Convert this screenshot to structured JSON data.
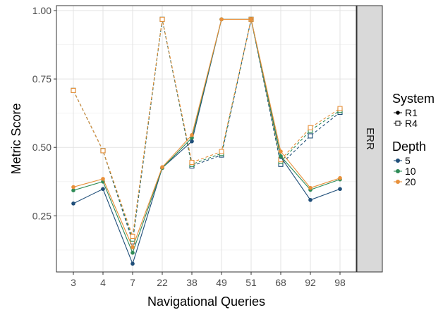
{
  "chart_data": {
    "type": "line",
    "xlabel": "Navigational Queries",
    "ylabel": "Metric Score",
    "facet_label": "ERR",
    "categories": [
      "3",
      "4",
      "7",
      "22",
      "38",
      "49",
      "51",
      "68",
      "92",
      "98"
    ],
    "y_ticks": [
      "0.25",
      "0.50",
      "0.75",
      "1.00"
    ],
    "ylim": [
      0.05,
      1.0
    ],
    "grid": true,
    "legend_position": "right",
    "legend": {
      "system_title": "System",
      "system_entries": [
        {
          "label": "R1",
          "line": "solid",
          "marker": "filled-circle"
        },
        {
          "label": "R4",
          "line": "dashed",
          "marker": "open-square"
        }
      ],
      "depth_title": "Depth",
      "depth_entries": [
        {
          "label": "5",
          "color": "#1f4e79"
        },
        {
          "label": "10",
          "color": "#2e8b57"
        },
        {
          "label": "20",
          "color": "#e8903a"
        }
      ]
    },
    "series": [
      {
        "system": "R1",
        "depth": "5",
        "color": "#1f4e79",
        "values": [
          0.295,
          0.348,
          0.075,
          0.425,
          0.522,
          0.968,
          0.968,
          0.465,
          0.308,
          0.348
        ]
      },
      {
        "system": "R1",
        "depth": "10",
        "color": "#2e8b57",
        "values": [
          0.343,
          0.375,
          0.115,
          0.425,
          0.535,
          0.968,
          0.968,
          0.468,
          0.345,
          0.383
        ]
      },
      {
        "system": "R1",
        "depth": "20",
        "color": "#e8903a",
        "values": [
          0.355,
          0.385,
          0.135,
          0.428,
          0.545,
          0.968,
          0.968,
          0.485,
          0.352,
          0.388
        ]
      },
      {
        "system": "R4",
        "depth": "5",
        "color": "#1f4e79",
        "values": [
          0.708,
          0.488,
          0.155,
          0.968,
          0.432,
          0.472,
          0.968,
          0.438,
          0.542,
          0.628
        ]
      },
      {
        "system": "R4",
        "depth": "10",
        "color": "#2e8b57",
        "values": [
          0.708,
          0.488,
          0.165,
          0.968,
          0.438,
          0.478,
          0.968,
          0.448,
          0.562,
          0.635
        ]
      },
      {
        "system": "R4",
        "depth": "20",
        "color": "#e8903a",
        "values": [
          0.708,
          0.488,
          0.175,
          0.968,
          0.445,
          0.485,
          0.968,
          0.455,
          0.572,
          0.642
        ]
      }
    ]
  }
}
